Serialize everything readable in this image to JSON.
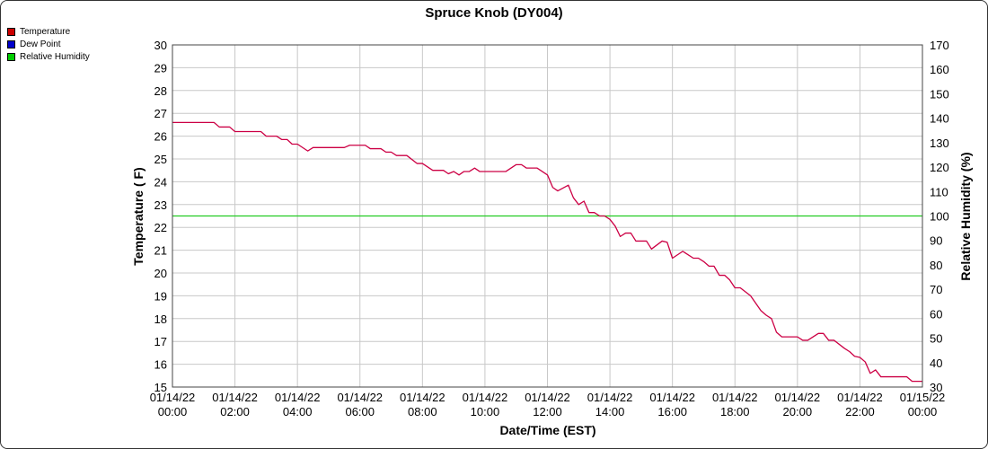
{
  "chart_data": {
    "type": "line",
    "title": "Spruce Knob (DY004)",
    "xlabel": "Date/Time (EST)",
    "ylabel": "Temperature ( F)",
    "y2label": "Relative Humidity (%)",
    "xlim_hours": [
      0,
      24
    ],
    "ylim": [
      15,
      30
    ],
    "y2lim": [
      30,
      170
    ],
    "yticks": [
      15,
      16,
      17,
      18,
      19,
      20,
      21,
      22,
      23,
      24,
      25,
      26,
      27,
      28,
      29,
      30
    ],
    "y2ticks": [
      30,
      40,
      50,
      60,
      70,
      80,
      90,
      100,
      110,
      120,
      130,
      140,
      150,
      160,
      170
    ],
    "xticks": [
      {
        "date": "01/14/22",
        "time": "00:00"
      },
      {
        "date": "01/14/22",
        "time": "02:00"
      },
      {
        "date": "01/14/22",
        "time": "04:00"
      },
      {
        "date": "01/14/22",
        "time": "06:00"
      },
      {
        "date": "01/14/22",
        "time": "08:00"
      },
      {
        "date": "01/14/22",
        "time": "10:00"
      },
      {
        "date": "01/14/22",
        "time": "12:00"
      },
      {
        "date": "01/14/22",
        "time": "14:00"
      },
      {
        "date": "01/14/22",
        "time": "16:00"
      },
      {
        "date": "01/14/22",
        "time": "18:00"
      },
      {
        "date": "01/14/22",
        "time": "20:00"
      },
      {
        "date": "01/14/22",
        "time": "22:00"
      },
      {
        "date": "01/15/22",
        "time": "00:00"
      }
    ],
    "grid": true,
    "legend_position": "top-left",
    "series": [
      {
        "name": "Temperature",
        "color": "#cc0000",
        "line_color": "#cc0044",
        "axis": "left",
        "points": [
          [
            0.0,
            26.6
          ],
          [
            1.33,
            26.6
          ],
          [
            1.5,
            26.4
          ],
          [
            1.83,
            26.4
          ],
          [
            2.0,
            26.2
          ],
          [
            2.83,
            26.2
          ],
          [
            3.0,
            26.0
          ],
          [
            3.33,
            26.0
          ],
          [
            3.5,
            25.85
          ],
          [
            3.67,
            25.85
          ],
          [
            3.83,
            25.65
          ],
          [
            4.0,
            25.65
          ],
          [
            4.33,
            25.35
          ],
          [
            4.5,
            25.5
          ],
          [
            5.5,
            25.5
          ],
          [
            5.67,
            25.6
          ],
          [
            6.17,
            25.6
          ],
          [
            6.33,
            25.45
          ],
          [
            6.67,
            25.45
          ],
          [
            6.83,
            25.3
          ],
          [
            7.0,
            25.3
          ],
          [
            7.17,
            25.15
          ],
          [
            7.5,
            25.15
          ],
          [
            7.83,
            24.8
          ],
          [
            8.0,
            24.8
          ],
          [
            8.33,
            24.5
          ],
          [
            8.67,
            24.5
          ],
          [
            8.83,
            24.35
          ],
          [
            9.0,
            24.45
          ],
          [
            9.17,
            24.3
          ],
          [
            9.33,
            24.45
          ],
          [
            9.5,
            24.45
          ],
          [
            9.67,
            24.6
          ],
          [
            9.83,
            24.45
          ],
          [
            10.67,
            24.45
          ],
          [
            11.0,
            24.75
          ],
          [
            11.17,
            24.75
          ],
          [
            11.33,
            24.6
          ],
          [
            11.67,
            24.6
          ],
          [
            12.0,
            24.3
          ],
          [
            12.17,
            23.75
          ],
          [
            12.33,
            23.6
          ],
          [
            12.67,
            23.85
          ],
          [
            12.83,
            23.3
          ],
          [
            13.0,
            23.0
          ],
          [
            13.17,
            23.15
          ],
          [
            13.33,
            22.65
          ],
          [
            13.5,
            22.65
          ],
          [
            13.67,
            22.5
          ],
          [
            13.83,
            22.5
          ],
          [
            14.0,
            22.35
          ],
          [
            14.17,
            22.05
          ],
          [
            14.33,
            21.6
          ],
          [
            14.5,
            21.75
          ],
          [
            14.67,
            21.75
          ],
          [
            14.83,
            21.4
          ],
          [
            15.17,
            21.4
          ],
          [
            15.33,
            21.05
          ],
          [
            15.67,
            21.4
          ],
          [
            15.83,
            21.35
          ],
          [
            16.0,
            20.65
          ],
          [
            16.33,
            20.95
          ],
          [
            16.67,
            20.65
          ],
          [
            16.83,
            20.65
          ],
          [
            17.0,
            20.5
          ],
          [
            17.17,
            20.3
          ],
          [
            17.33,
            20.3
          ],
          [
            17.5,
            19.9
          ],
          [
            17.67,
            19.9
          ],
          [
            17.83,
            19.7
          ],
          [
            18.0,
            19.35
          ],
          [
            18.17,
            19.35
          ],
          [
            18.5,
            19.0
          ],
          [
            18.83,
            18.35
          ],
          [
            19.0,
            18.15
          ],
          [
            19.17,
            18.0
          ],
          [
            19.33,
            17.4
          ],
          [
            19.5,
            17.2
          ],
          [
            19.67,
            17.2
          ],
          [
            20.0,
            17.2
          ],
          [
            20.17,
            17.05
          ],
          [
            20.33,
            17.05
          ],
          [
            20.67,
            17.35
          ],
          [
            20.83,
            17.35
          ],
          [
            21.0,
            17.05
          ],
          [
            21.17,
            17.05
          ],
          [
            21.5,
            16.7
          ],
          [
            21.67,
            16.55
          ],
          [
            21.83,
            16.35
          ],
          [
            22.0,
            16.3
          ],
          [
            22.17,
            16.1
          ],
          [
            22.33,
            15.6
          ],
          [
            22.5,
            15.75
          ],
          [
            22.67,
            15.45
          ],
          [
            23.5,
            15.45
          ],
          [
            23.67,
            15.25
          ],
          [
            24.0,
            15.25
          ]
        ]
      },
      {
        "name": "Dew Point",
        "color": "#0000cc",
        "line_color": "#0000cc",
        "axis": "left",
        "points": []
      },
      {
        "name": "Relative Humidity",
        "color": "#00cc00",
        "line_color": "#22cc22",
        "axis": "right",
        "points": [
          [
            0.0,
            100
          ],
          [
            24.0,
            100
          ]
        ]
      }
    ]
  }
}
